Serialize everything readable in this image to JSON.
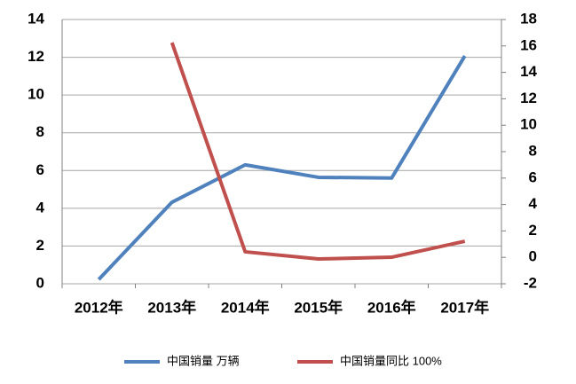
{
  "chart_data": {
    "type": "line",
    "categories": [
      "2012年",
      "2013年",
      "2014年",
      "2015年",
      "2016年",
      "2017年"
    ],
    "series": [
      {
        "name": "中国销量 万辆",
        "color": "#4f81bd",
        "values": [
          0.23,
          4.32,
          6.3,
          5.64,
          5.6,
          12.07
        ]
      },
      {
        "name": "中国销量同比 100%",
        "color": "#c0504d",
        "axis": "y2",
        "values": [
          null,
          16.25,
          0.42,
          -0.12,
          0.01,
          1.22
        ]
      }
    ],
    "ylim": [
      0,
      14
    ],
    "yticks": [
      0,
      2,
      4,
      6,
      8,
      10,
      12,
      14
    ],
    "y2lim": [
      -2,
      18
    ],
    "y2ticks": [
      -2,
      0,
      2,
      4,
      6,
      8,
      10,
      12,
      14,
      16,
      18
    ],
    "grid": true,
    "legend": "bottom"
  }
}
